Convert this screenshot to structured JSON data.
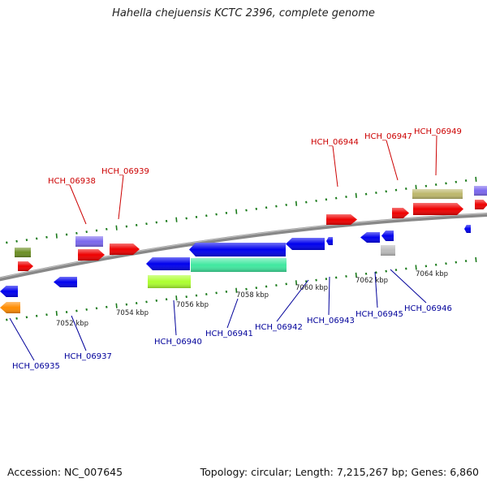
{
  "title": "Hahella chejuensis KCTC 2396, complete genome",
  "accession": "Accession: NC_007645",
  "summary": "Topology: circular; Length: 7,215,267 bp; Genes: 6,860",
  "colors": {
    "forward_label": "#cc0000",
    "reverse_label": "#00009a",
    "backbone": "#777777",
    "tick": "#1a7a1a"
  },
  "scale_labels": [
    "7052 kbp",
    "7054 kbp",
    "7056 kbp",
    "7058 kbp",
    "7060 kbp",
    "7062 kbp",
    "7064 kbp"
  ],
  "forward_genes": [
    "HCH_06938",
    "HCH_06939",
    "HCH_06944",
    "HCH_06947",
    "HCH_06949"
  ],
  "reverse_genes": [
    "HCH_06935",
    "HCH_06937",
    "HCH_06940",
    "HCH_06941",
    "HCH_06942",
    "HCH_06943",
    "HCH_06945",
    "HCH_06946"
  ]
}
